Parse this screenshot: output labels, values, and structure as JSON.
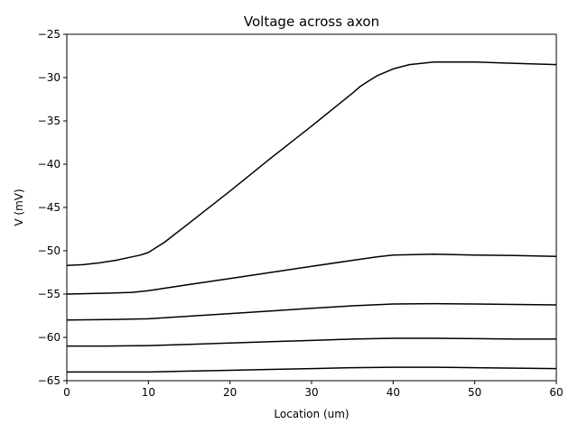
{
  "chart_data": {
    "type": "line",
    "title": "Voltage across axon",
    "xlabel": "Location (um)",
    "ylabel": "V (mV)",
    "xlim": [
      0,
      60
    ],
    "ylim": [
      -65,
      -25
    ],
    "xticks": [
      0,
      10,
      20,
      30,
      40,
      50,
      60
    ],
    "yticks": [
      -65,
      -60,
      -55,
      -50,
      -45,
      -40,
      -35,
      -30,
      -25
    ],
    "xtick_labels": [
      "0",
      "10",
      "20",
      "30",
      "40",
      "50",
      "60"
    ],
    "ytick_labels": [
      "−65",
      "−60",
      "−55",
      "−50",
      "−45",
      "−40",
      "−35",
      "−30",
      "−25"
    ],
    "grid": false,
    "line_color": "#000000",
    "series": [
      {
        "x": [
          0,
          2,
          4,
          6,
          8,
          9,
          10,
          12,
          15,
          20,
          25,
          30,
          35,
          36,
          37,
          38,
          40,
          42,
          45,
          48,
          50,
          55,
          60
        ],
        "values": [
          -51.7,
          -51.6,
          -51.4,
          -51.1,
          -50.7,
          -50.5,
          -50.2,
          -49.0,
          -46.8,
          -43.1,
          -39.3,
          -35.6,
          -31.8,
          -31.0,
          -30.4,
          -29.8,
          -29.0,
          -28.5,
          -28.2,
          -28.2,
          -28.2,
          -28.35,
          -28.5
        ]
      },
      {
        "x": [
          0,
          5,
          8,
          10,
          15,
          20,
          25,
          30,
          35,
          38,
          40,
          45,
          50,
          55,
          60
        ],
        "values": [
          -55.0,
          -54.9,
          -54.8,
          -54.6,
          -53.9,
          -53.2,
          -52.5,
          -51.8,
          -51.1,
          -50.7,
          -50.5,
          -50.4,
          -50.5,
          -50.55,
          -50.65
        ]
      },
      {
        "x": [
          0,
          5,
          10,
          15,
          20,
          25,
          30,
          35,
          40,
          45,
          50,
          55,
          60
        ],
        "values": [
          -58.0,
          -57.95,
          -57.85,
          -57.55,
          -57.25,
          -56.95,
          -56.65,
          -56.35,
          -56.15,
          -56.1,
          -56.15,
          -56.2,
          -56.25
        ]
      },
      {
        "x": [
          0,
          5,
          10,
          15,
          20,
          25,
          30,
          35,
          40,
          45,
          50,
          55,
          60
        ],
        "values": [
          -61.0,
          -61.0,
          -60.95,
          -60.8,
          -60.65,
          -60.5,
          -60.35,
          -60.2,
          -60.1,
          -60.1,
          -60.15,
          -60.2,
          -60.2
        ]
      },
      {
        "x": [
          0,
          5,
          10,
          15,
          20,
          25,
          30,
          35,
          40,
          45,
          50,
          55,
          60
        ],
        "values": [
          -64.0,
          -64.0,
          -64.0,
          -63.9,
          -63.8,
          -63.7,
          -63.6,
          -63.5,
          -63.45,
          -63.45,
          -63.5,
          -63.55,
          -63.6
        ]
      }
    ]
  }
}
